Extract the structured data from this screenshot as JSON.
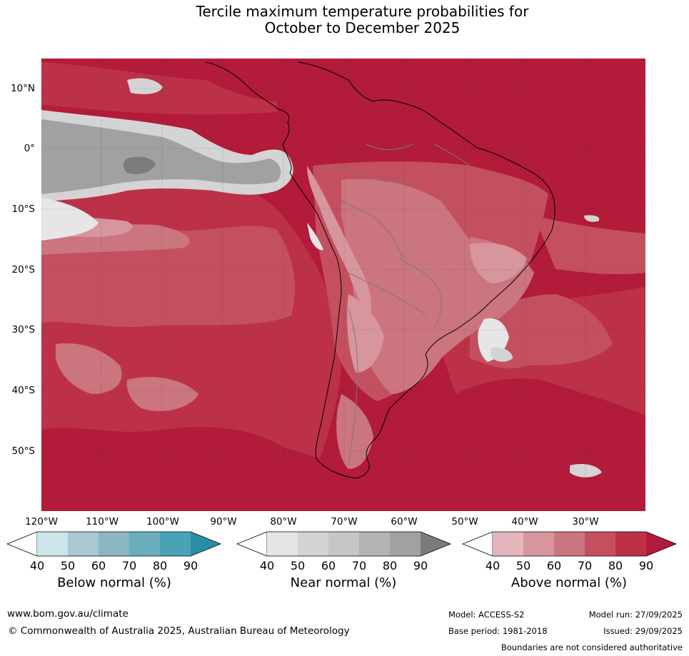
{
  "title": {
    "line1": "Tercile maximum temperature probabilities for",
    "line2": "October to December 2025"
  },
  "map": {
    "latitude_labels": [
      "10°N",
      "0°",
      "10°S",
      "20°S",
      "30°S",
      "40°S",
      "50°S"
    ],
    "longitude_labels": [
      "120°W",
      "110°W",
      "100°W",
      "90°W",
      "80°W",
      "70°W",
      "60°W",
      "50°W",
      "40°W",
      "30°W"
    ]
  },
  "colorbars": [
    {
      "label": "Below normal (%)",
      "ticks": [
        "40",
        "50",
        "60",
        "70",
        "80",
        "90"
      ],
      "colors": [
        "#ffffff",
        "#cde4ea",
        "#a8c9cf",
        "#8cb6c3",
        "#6aaebd",
        "#4aa3b4",
        "#2b8ea6"
      ]
    },
    {
      "label": "Near normal (%)",
      "ticks": [
        "40",
        "50",
        "60",
        "70",
        "80",
        "90"
      ],
      "colors": [
        "#ffffff",
        "#e6e6e6",
        "#d4d4d4",
        "#c6c6c6",
        "#b4b4b4",
        "#a1a1a1",
        "#7b7b7b"
      ]
    },
    {
      "label": "Above normal (%)",
      "ticks": [
        "40",
        "50",
        "60",
        "70",
        "80",
        "90"
      ],
      "colors": [
        "#ffffff",
        "#e2b6bc",
        "#d7959e",
        "#cb757f",
        "#c4505f",
        "#bc3148",
        "#b21b3a"
      ]
    }
  ],
  "footer": {
    "website": "www.bom.gov.au/climate",
    "copyright": "© Commonwealth of Australia 2025, Australian Bureau of Meteorology",
    "model": "Model: ACCESS-S2",
    "model_run": "Model run: 27/09/2025",
    "base_period": "Base period: 1981-2018",
    "issued": "Issued: 29/09/2025",
    "disclaimer": "Boundaries are not considered authoritative"
  }
}
